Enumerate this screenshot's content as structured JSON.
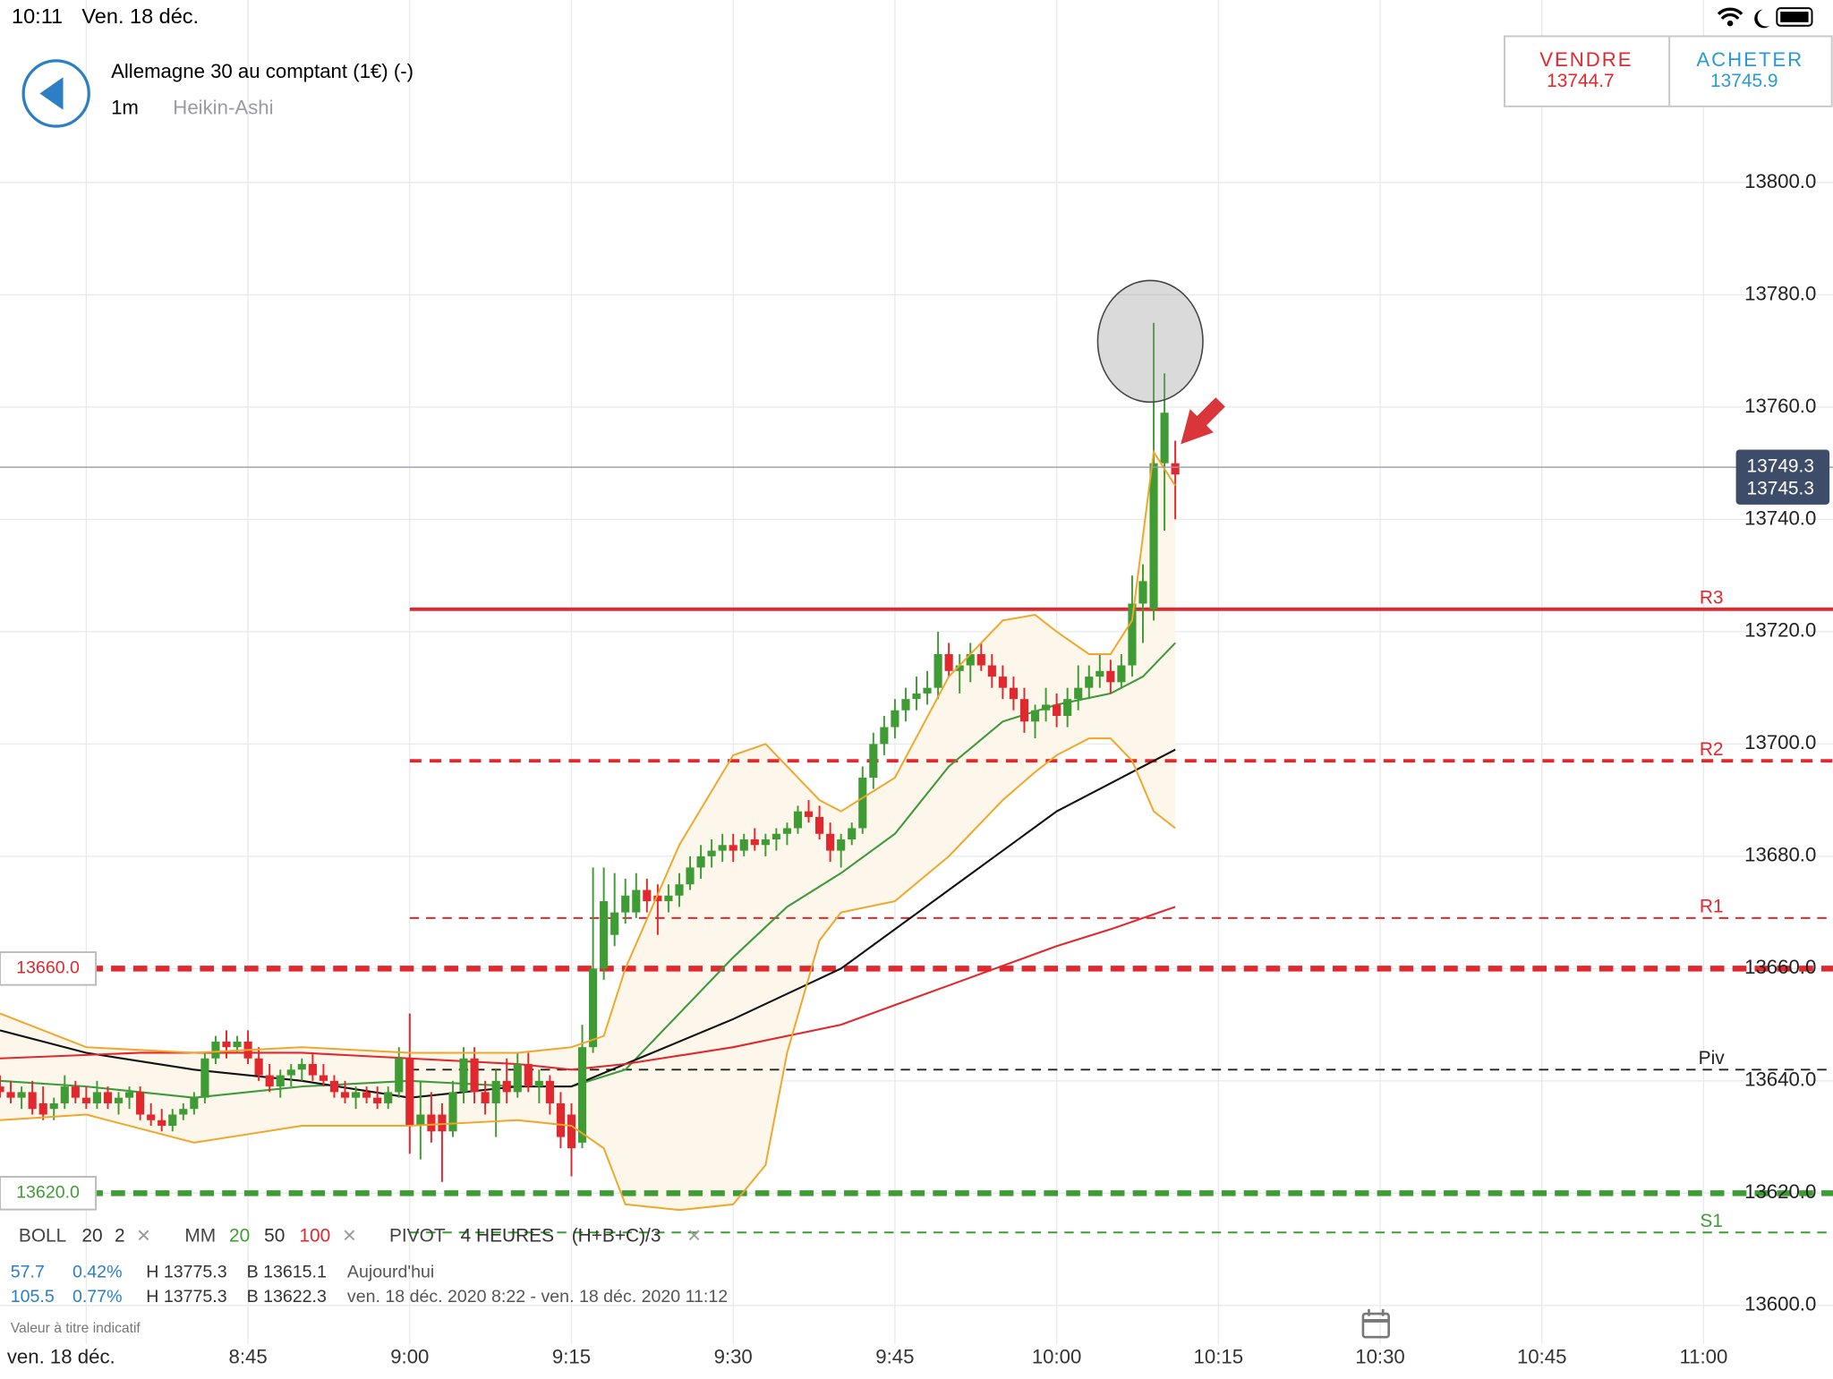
{
  "status_bar": {
    "time": "10:11",
    "date": "Ven. 18 déc."
  },
  "header": {
    "title": "Allemagne 30 au comptant (1€) (-)",
    "interval": "1m",
    "chart_style": "Heikin-Ashi"
  },
  "quote": {
    "sell_label": "VENDRE",
    "sell": 13744.7,
    "buy_label": "ACHETER",
    "buy": 13745.9
  },
  "legend": {
    "boll": [
      "BOLL",
      "20",
      "2"
    ],
    "mm": [
      "MM",
      "20",
      "50",
      "100"
    ],
    "pivot": [
      "PIVOT",
      "4 HEURES",
      "(H+B+C)/3"
    ],
    "row1": [
      "57.7",
      "0.42%",
      "H 13775.3",
      "B 13615.1",
      "Aujourd'hui"
    ],
    "row2": [
      "105.5",
      "0.77%",
      "H 13775.3",
      "B 13622.3",
      "ven. 18 déc. 2020 8:22 - ven. 18 déc. 2020 11:12"
    ],
    "note": "Valeur à titre indicatif",
    "date": "ven. 18 déc."
  },
  "chart_data": {
    "type": "candlestick",
    "xlim": [
      "8:22",
      "11:12"
    ],
    "ylim": [
      13587.7,
      13832.5
    ],
    "xticks": [
      {
        "value": "8:30",
        "label": null
      },
      "8:45",
      "9:00",
      "9:15",
      "9:30",
      "9:45",
      "10:00",
      "10:15",
      "10:30",
      "10:45",
      "11:00"
    ],
    "yticks": [
      {
        "value": 13600,
        "label": "13600.0"
      },
      {
        "value": 13620,
        "label": "13620.0"
      },
      {
        "value": 13640,
        "label": "13640.0"
      },
      {
        "value": 13660,
        "label": "13660.0"
      },
      {
        "value": 13680,
        "label": "13680.0"
      },
      {
        "value": 13700,
        "label": "13700.0"
      },
      {
        "value": 13720,
        "label": "13720.0"
      },
      {
        "value": 13740,
        "label": "13740.0"
      },
      {
        "value": 13760,
        "label": "13760.0"
      },
      {
        "value": 13780,
        "label": "13780.0"
      },
      {
        "value": 13800,
        "label": "13800.0"
      }
    ],
    "grid": true,
    "up_color": "#3f9c35",
    "down_color": "#e0282e",
    "x": [
      "8:22",
      "8:23",
      "8:24",
      "8:25",
      "8:26",
      "8:27",
      "8:28",
      "8:29",
      "8:30",
      "8:31",
      "8:32",
      "8:33",
      "8:34",
      "8:35",
      "8:36",
      "8:37",
      "8:38",
      "8:39",
      "8:40",
      "8:41",
      "8:42",
      "8:43",
      "8:44",
      "8:45",
      "8:46",
      "8:47",
      "8:48",
      "8:49",
      "8:50",
      "8:51",
      "8:52",
      "8:53",
      "8:54",
      "8:55",
      "8:56",
      "8:57",
      "8:58",
      "8:59",
      "9:00",
      "9:01",
      "9:02",
      "9:03",
      "9:04",
      "9:05",
      "9:06",
      "9:07",
      "9:08",
      "9:09",
      "9:10",
      "9:11",
      "9:12",
      "9:13",
      "9:14",
      "9:15",
      "9:16",
      "9:17",
      "9:18",
      "9:19",
      "9:20",
      "9:21",
      "9:22",
      "9:23",
      "9:24",
      "9:25",
      "9:26",
      "9:27",
      "9:28",
      "9:29",
      "9:30",
      "9:31",
      "9:32",
      "9:33",
      "9:34",
      "9:35",
      "9:36",
      "9:37",
      "9:38",
      "9:39",
      "9:40",
      "9:41",
      "9:42",
      "9:43",
      "9:44",
      "9:45",
      "9:46",
      "9:47",
      "9:48",
      "9:49",
      "9:50",
      "9:51",
      "9:52",
      "9:53",
      "9:54",
      "9:55",
      "9:56",
      "9:57",
      "9:58",
      "9:59",
      "10:00",
      "10:01",
      "10:02",
      "10:03",
      "10:04",
      "10:05",
      "10:06",
      "10:07",
      "10:08",
      "10:09",
      "10:10",
      "10:11"
    ],
    "ohlc": [
      [
        13639,
        13641,
        13637,
        13638
      ],
      [
        13638,
        13640,
        13636,
        13637
      ],
      [
        13637,
        13639,
        13635,
        13638
      ],
      [
        13638,
        13640,
        13634,
        13635
      ],
      [
        13636,
        13639,
        13633,
        13634
      ],
      [
        13635,
        13637,
        13633,
        13636
      ],
      [
        13636,
        13641,
        13635,
        13639
      ],
      [
        13639,
        13640,
        13636,
        13637
      ],
      [
        13637,
        13639,
        13635,
        13636
      ],
      [
        13636,
        13640,
        13635,
        13638
      ],
      [
        13638,
        13639,
        13635,
        13636
      ],
      [
        13636,
        13638,
        13634,
        13637
      ],
      [
        13637,
        13639,
        13635,
        13638
      ],
      [
        13638,
        13639,
        13633,
        13634
      ],
      [
        13634,
        13636,
        13632,
        13633
      ],
      [
        13633,
        13635,
        13631,
        13632
      ],
      [
        13632,
        13635,
        13631,
        13634
      ],
      [
        13634,
        13636,
        13633,
        13635
      ],
      [
        13635,
        13638,
        13634,
        13637
      ],
      [
        13637,
        13645,
        13636,
        13644
      ],
      [
        13644,
        13648,
        13643,
        13647
      ],
      [
        13647,
        13649,
        13644,
        13646
      ],
      [
        13646,
        13648,
        13645,
        13647
      ],
      [
        13647,
        13649,
        13643,
        13644
      ],
      [
        13644,
        13646,
        13640,
        13641
      ],
      [
        13641,
        13643,
        13638,
        13639
      ],
      [
        13639,
        13642,
        13637,
        13641
      ],
      [
        13641,
        13643,
        13639,
        13642
      ],
      [
        13642,
        13644,
        13640,
        13643
      ],
      [
        13643,
        13645,
        13640,
        13641
      ],
      [
        13641,
        13643,
        13639,
        13640
      ],
      [
        13640,
        13641,
        13637,
        13638
      ],
      [
        13638,
        13640,
        13636,
        13637
      ],
      [
        13637,
        13639,
        13635,
        13638
      ],
      [
        13638,
        13639,
        13636,
        13637
      ],
      [
        13637,
        13639,
        13635,
        13636
      ],
      [
        13636,
        13639,
        13635,
        13638
      ],
      [
        13638,
        13646,
        13637,
        13644
      ],
      [
        13644,
        13652,
        13627,
        13632
      ],
      [
        13632,
        13640,
        13626,
        13634
      ],
      [
        13634,
        13638,
        13629,
        13631
      ],
      [
        13634,
        13636,
        13622,
        13631
      ],
      [
        13631,
        13640,
        13630,
        13638
      ],
      [
        13638,
        13646,
        13636,
        13644
      ],
      [
        13644,
        13646,
        13636,
        13638
      ],
      [
        13638,
        13640,
        13634,
        13636
      ],
      [
        13636,
        13642,
        13630,
        13640
      ],
      [
        13640,
        13644,
        13636,
        13638
      ],
      [
        13638,
        13645,
        13637,
        13643
      ],
      [
        13643,
        13645,
        13638,
        13639
      ],
      [
        13639,
        13642,
        13636,
        13640
      ],
      [
        13640,
        13641,
        13634,
        13636
      ],
      [
        13636,
        13638,
        13628,
        13630
      ],
      [
        13634,
        13636,
        13623,
        13628
      ],
      [
        13629,
        13650,
        13628,
        13646
      ],
      [
        13646,
        13678,
        13645,
        13660
      ],
      [
        13660,
        13678,
        13658,
        13672
      ],
      [
        13666,
        13677,
        13664,
        13670
      ],
      [
        13670,
        13676,
        13668,
        13673
      ],
      [
        13670,
        13677,
        13669,
        13674
      ],
      [
        13674,
        13676,
        13670,
        13672
      ],
      [
        13673,
        13675,
        13666,
        13672
      ],
      [
        13672,
        13675,
        13670,
        13673
      ],
      [
        13673,
        13677,
        13671,
        13675
      ],
      [
        13675,
        13680,
        13674,
        13678
      ],
      [
        13678,
        13682,
        13676,
        13680
      ],
      [
        13680,
        13683,
        13678,
        13681
      ],
      [
        13681,
        13684,
        13679,
        13682
      ],
      [
        13682,
        13684,
        13679,
        13681
      ],
      [
        13681,
        13684,
        13680,
        13683
      ],
      [
        13683,
        13685,
        13681,
        13682
      ],
      [
        13682,
        13684,
        13680,
        13683
      ],
      [
        13683,
        13685,
        13681,
        13684
      ],
      [
        13684,
        13686,
        13682,
        13685
      ],
      [
        13685,
        13689,
        13684,
        13688
      ],
      [
        13688,
        13690,
        13686,
        13687
      ],
      [
        13687,
        13689,
        13683,
        13684
      ],
      [
        13684,
        13686,
        13679,
        13681
      ],
      [
        13681,
        13684,
        13678,
        13683
      ],
      [
        13683,
        13686,
        13682,
        13685
      ],
      [
        13685,
        13696,
        13684,
        13694
      ],
      [
        13694,
        13702,
        13692,
        13700
      ],
      [
        13700,
        13705,
        13698,
        13703
      ],
      [
        13703,
        13708,
        13701,
        13706
      ],
      [
        13706,
        13710,
        13704,
        13708
      ],
      [
        13708,
        13712,
        13706,
        13709
      ],
      [
        13709,
        13713,
        13707,
        13710
      ],
      [
        13710,
        13720,
        13708,
        13716
      ],
      [
        13716,
        13718,
        13712,
        13713
      ],
      [
        13713,
        13716,
        13709,
        13714
      ],
      [
        13714,
        13718,
        13711,
        13716
      ],
      [
        13716,
        13718,
        13713,
        13714
      ],
      [
        13714,
        13716,
        13710,
        13712
      ],
      [
        13712,
        13714,
        13708,
        13710
      ],
      [
        13710,
        13712,
        13706,
        13708
      ],
      [
        13708,
        13710,
        13702,
        13704
      ],
      [
        13704,
        13707,
        13701,
        13706
      ],
      [
        13706,
        13710,
        13704,
        13707
      ],
      [
        13707,
        13709,
        13703,
        13705
      ],
      [
        13705,
        13710,
        13703,
        13708
      ],
      [
        13708,
        13714,
        13706,
        13710
      ],
      [
        13710,
        13714,
        13708,
        13712
      ],
      [
        13712,
        13716,
        13710,
        13713
      ],
      [
        13713,
        13715,
        13709,
        13711
      ],
      [
        13711,
        13716,
        13710,
        13714
      ],
      [
        13714,
        13730,
        13712,
        13725
      ],
      [
        13725,
        13732,
        13718,
        13729
      ],
      [
        13724,
        13775,
        13722,
        13750
      ],
      [
        13750,
        13766,
        13738,
        13759
      ],
      [
        13750,
        13754,
        13740,
        13748
      ]
    ],
    "band": {
      "color": "#f0a628",
      "fill": "#fdf6ea",
      "x": [
        "8:22",
        "8:30",
        "8:40",
        "8:50",
        "9:00",
        "9:10",
        "9:15",
        "9:18",
        "9:20",
        "9:25",
        "9:30",
        "9:33",
        "9:35",
        "9:38",
        "9:40",
        "9:45",
        "9:50",
        "9:55",
        "9:58",
        "10:00",
        "10:03",
        "10:05",
        "10:07",
        "10:09",
        "10:11"
      ],
      "upper": [
        13652,
        13646,
        13645,
        13646,
        13645,
        13645,
        13646,
        13648,
        13660,
        13682,
        13698,
        13700,
        13696,
        13690,
        13688,
        13694,
        13712,
        13722,
        13723,
        13720,
        13716,
        13716,
        13722,
        13752,
        13746
      ],
      "lower": [
        13633,
        13634,
        13629,
        13632,
        13632,
        13633,
        13632,
        13628,
        13618,
        13617,
        13618,
        13625,
        13645,
        13665,
        13670,
        13672,
        13680,
        13690,
        13695,
        13698,
        13701,
        13701,
        13697,
        13688,
        13685
      ]
    },
    "lines": [
      {
        "color": "#3d9a3d",
        "x": [
          "8:22",
          "8:30",
          "8:40",
          "8:50",
          "9:00",
          "9:10",
          "9:15",
          "9:20",
          "9:25",
          "9:30",
          "9:35",
          "9:40",
          "9:45",
          "9:50",
          "9:55",
          "10:00",
          "10:05",
          "10:08",
          "10:11"
        ],
        "values": [
          13640,
          13639,
          13637,
          13639,
          13640,
          13639,
          13639,
          13642,
          13652,
          13662,
          13671,
          13677,
          13684,
          13696,
          13704,
          13707,
          13709,
          13712,
          13718
        ]
      },
      {
        "color": "#111111",
        "x": [
          "8:22",
          "8:30",
          "8:40",
          "8:50",
          "9:00",
          "9:10",
          "9:15",
          "9:20",
          "9:30",
          "9:40",
          "9:50",
          "10:00",
          "10:05",
          "10:11"
        ],
        "values": [
          13649,
          13645,
          13642,
          13640,
          13637,
          13639,
          13639,
          13643,
          13651,
          13660,
          13674,
          13688,
          13693,
          13699
        ]
      },
      {
        "color": "#e0282e",
        "x": [
          "8:22",
          "8:35",
          "8:50",
          "9:00",
          "9:10",
          "9:15",
          "9:20",
          "9:30",
          "9:40",
          "9:50",
          "10:00",
          "10:05",
          "10:11"
        ],
        "values": [
          13644,
          13645,
          13645,
          13644,
          13643,
          13642,
          13643,
          13646,
          13650,
          13657,
          13664,
          13667,
          13671
        ]
      }
    ],
    "levels": [
      {
        "label": "R3",
        "value": 13724,
        "color": "#e0282e",
        "style": "solid",
        "start": "9:00"
      },
      {
        "label": "R2",
        "value": 13697,
        "color": "#e0282e",
        "style": "dashed",
        "start": "9:00"
      },
      {
        "label": "R1",
        "value": 13669,
        "color": "#e0282e",
        "style": "thin",
        "start": "9:00"
      },
      {
        "label": "Piv",
        "value": 13642,
        "color": "#222222",
        "style": "thin",
        "start": "9:00"
      },
      {
        "label": "S1",
        "value": 13613,
        "color": "#3f9c35",
        "style": "thin",
        "start": "9:00"
      },
      {
        "label": "13660.0",
        "value": 13660,
        "color": "#e0282e",
        "style": "bold",
        "start": "8:22"
      },
      {
        "label": "13620.0",
        "value": 13620,
        "color": "#3f9c35",
        "style": "bold",
        "start": "8:22"
      }
    ],
    "price_line": [
      13749.3,
      13745.3
    ]
  }
}
